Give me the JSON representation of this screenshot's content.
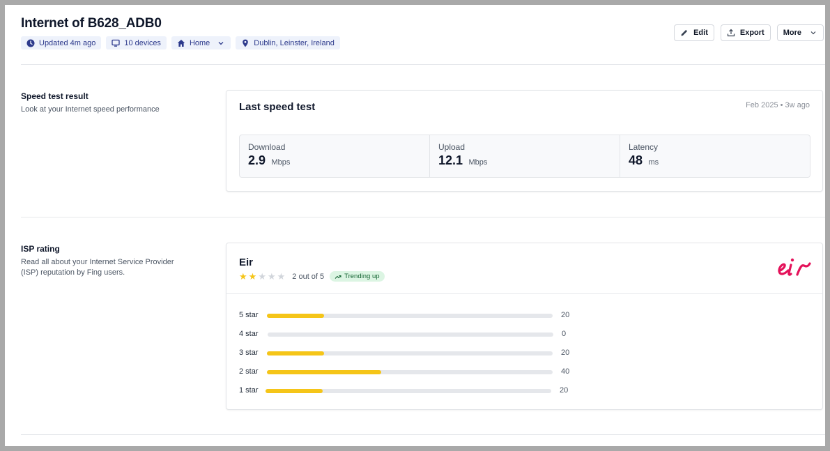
{
  "header": {
    "title": "Internet of B628_ADB0",
    "chips": [
      {
        "icon": "clock-icon",
        "label": "Updated 4m ago"
      },
      {
        "icon": "monitor-icon",
        "label": "10 devices"
      },
      {
        "icon": "home-icon",
        "label": "Home"
      },
      {
        "icon": "location-pin-icon",
        "label": "Dublin, Leinster, Ireland"
      }
    ],
    "actions": {
      "edit_label": "Edit",
      "export_label": "Export",
      "more_label": "More"
    }
  },
  "speed_section": {
    "title": "Speed test result",
    "description": "Look at your Internet speed performance",
    "card_title": "Last speed test",
    "meta": "Feb 2025 • 3w ago",
    "metrics": [
      {
        "label": "Download",
        "value": "2.9",
        "unit": "Mbps"
      },
      {
        "label": "Upload",
        "value": "12.1",
        "unit": "Mbps"
      },
      {
        "label": "Latency",
        "value": "48",
        "unit": "ms"
      }
    ]
  },
  "isp_section": {
    "title": "ISP rating",
    "description": "Read all about your Internet Service Provider (ISP) reputation by Fing users.",
    "isp_name": "Eir",
    "rating": 2,
    "rating_max": 5,
    "rating_text": "2 out of 5",
    "trend_label": "Trending up",
    "logo_text": "eir",
    "colors": {
      "star": "#f5c518",
      "logo": "#e4125a",
      "chip_text": "#2d3a8c",
      "trend_bg": "#dcf5e3"
    },
    "distribution": [
      {
        "label": "5 star",
        "count": "20",
        "fraction": 0.2
      },
      {
        "label": "4 star",
        "count": "0",
        "fraction": 0
      },
      {
        "label": "3 star",
        "count": "20",
        "fraction": 0.2
      },
      {
        "label": "2 star",
        "count": "40",
        "fraction": 0.4
      },
      {
        "label": "1 star",
        "count": "20",
        "fraction": 0.2
      }
    ]
  }
}
